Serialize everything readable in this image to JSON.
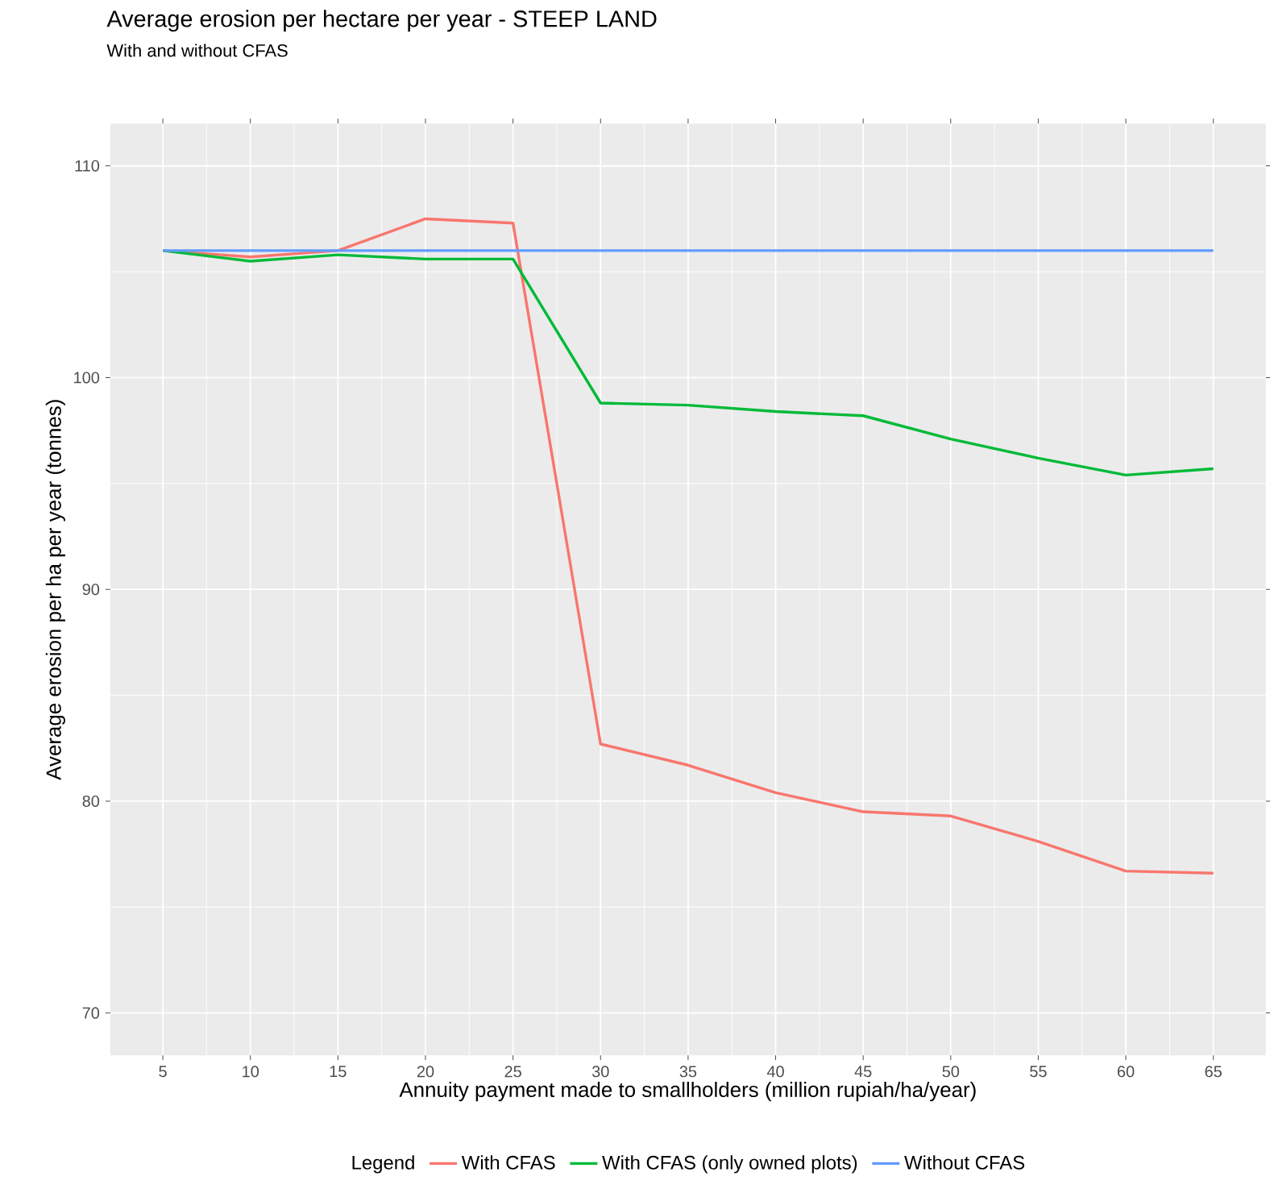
{
  "chart_data": {
    "type": "line",
    "title": "Average erosion per hectare per year - STEEP LAND",
    "subtitle": "With and without CFAS",
    "xlabel": "Annuity payment made to smallholders (million rupiah/ha/year)",
    "ylabel": "Average erosion per ha per year (tonnes)",
    "legend_title": "Legend",
    "x": [
      5,
      10,
      15,
      20,
      25,
      30,
      35,
      40,
      45,
      50,
      55,
      60,
      65
    ],
    "series": [
      {
        "name": "With CFAS",
        "color": "#f8766d",
        "values": [
          106,
          105.7,
          106,
          107.5,
          107.3,
          82.7,
          81.7,
          80.4,
          79.5,
          79.3,
          78.1,
          76.7,
          76.6
        ]
      },
      {
        "name": "With CFAS (only owned plots)",
        "color": "#00ba38",
        "values": [
          106,
          105.5,
          105.8,
          105.6,
          105.6,
          98.8,
          98.7,
          98.4,
          98.2,
          97.1,
          96.2,
          95.4,
          95.7
        ]
      },
      {
        "name": "Without CFAS",
        "color": "#619cff",
        "values": [
          106,
          106,
          106,
          106,
          106,
          106,
          106,
          106,
          106,
          106,
          106,
          106,
          106
        ]
      }
    ],
    "xlim": [
      2,
      68
    ],
    "ylim": [
      68,
      112
    ],
    "xticks": [
      5,
      10,
      15,
      20,
      25,
      30,
      35,
      40,
      45,
      50,
      55,
      60,
      65
    ],
    "yticks": [
      70,
      80,
      90,
      100,
      110
    ],
    "grid": true,
    "legend": "bottom"
  }
}
